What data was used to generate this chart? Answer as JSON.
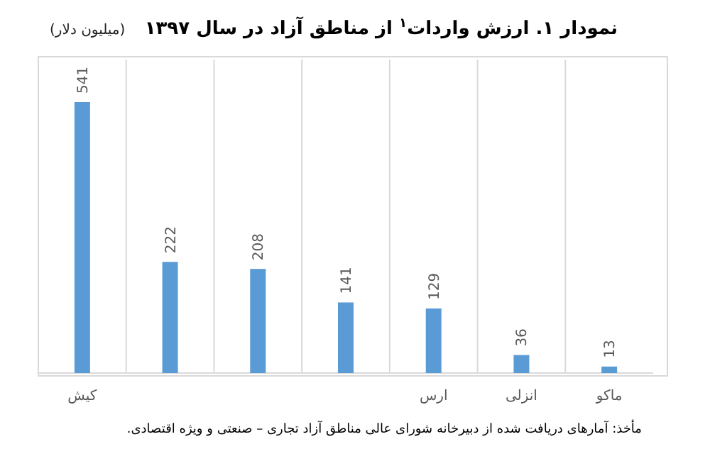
{
  "chart_data": {
    "type": "bar",
    "title": "نمودار ۱. ارزش واردات$^{۱}$ از مناطق آزاد در سال ۱۳۹۷",
    "subtitle": "(میلیون دلار)",
    "categories": [
      "کیش",
      null,
      null,
      null,
      "ارس",
      "انزلی",
      "ماکو"
    ],
    "values": [
      541,
      222,
      208,
      141,
      129,
      36,
      13
    ],
    "color": "#5b9bd5",
    "data_labels": true,
    "grid": "x",
    "annotations": [
      "مأخذ: آمارهای دریافت شده از دبیرخانه شورای عالی مناطق آزاد تجاری – صنعتی و ویژه اقتصادی."
    ]
  }
}
